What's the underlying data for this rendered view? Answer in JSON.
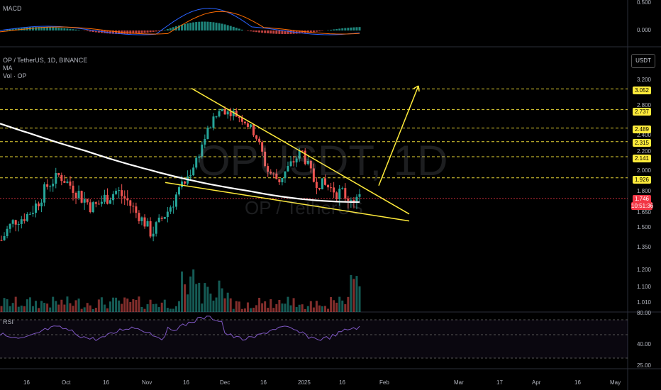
{
  "panels": {
    "macd_label": "MACD",
    "rsi_label": "RSI",
    "symbol_line": "OP / TetherUS, 1D, BINANCE",
    "ma_label": "MA",
    "vol_label": "Vol · OP",
    "currency_button": "USDT",
    "watermark_ticker": "OPUSDT, 1D",
    "watermark_name": "OP / TetherUS"
  },
  "macd_axis": [
    "0.500",
    "0.000"
  ],
  "rsi_axis": [
    "80.00",
    "40.00",
    "25.00"
  ],
  "price_axis": [
    "3.200",
    "2.800",
    "2.400",
    "2.200",
    "2.000",
    "1.800",
    "1.650",
    "1.500",
    "1.350",
    "1.200",
    "1.100",
    "1.010"
  ],
  "x_axis": [
    "16",
    "Oct",
    "16",
    "Nov",
    "16",
    "Dec",
    "16",
    "2025",
    "16",
    "Feb",
    "Mar",
    "17",
    "Apr",
    "16",
    "May"
  ],
  "levels": [
    "3.052",
    "2.737",
    "2.489",
    "2.315",
    "2.141",
    "1.926"
  ],
  "last_price": {
    "price": "1.746",
    "countdown": "10:51:36"
  },
  "colors": {
    "level_badge": "#ffeb3b",
    "last_price_badge": "#f23645",
    "bull": "#26a69a",
    "bear": "#ef5350",
    "trend_line": "#ffeb3b",
    "ma_line": "#ffffff",
    "rsi_line": "#7e57c2",
    "macd_line": "#2962ff",
    "signal_line": "#ff6d00"
  },
  "chart_data": {
    "type": "candlestick",
    "symbol": "OP / TetherUS",
    "interval": "1D",
    "exchange": "BINANCE",
    "price_range": [
      1.0,
      3.3
    ],
    "closes_approx": [
      1.4,
      1.55,
      1.6,
      1.7,
      1.85,
      1.95,
      1.85,
      1.75,
      1.68,
      1.75,
      1.8,
      1.72,
      1.6,
      1.45,
      1.6,
      1.75,
      1.9,
      2.15,
      2.5,
      2.75,
      2.7,
      2.6,
      2.4,
      2.0,
      1.9,
      2.05,
      2.2,
      1.9,
      1.85,
      1.8,
      1.76,
      1.746
    ],
    "horizontal_levels": [
      3.052,
      2.737,
      2.489,
      2.315,
      2.141,
      1.926
    ],
    "target_price_approx": 3.05,
    "pattern": "falling wedge",
    "rsi_levels": [
      80,
      40,
      25
    ]
  }
}
